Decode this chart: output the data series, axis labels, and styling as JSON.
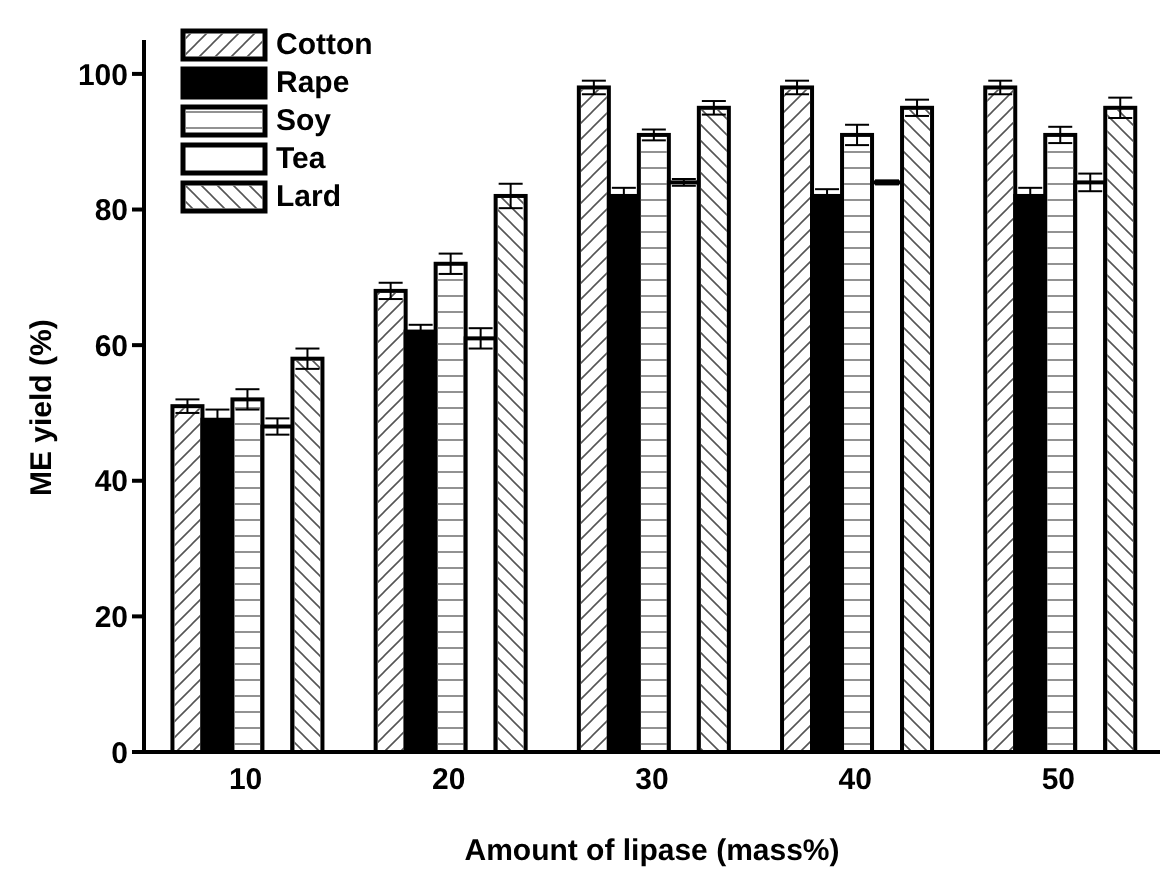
{
  "chart_data": {
    "type": "bar",
    "xlabel": "Amount of lipase (mass%)",
    "ylabel": "ME yield (%)",
    "categories": [
      "10",
      "20",
      "30",
      "40",
      "50"
    ],
    "series": [
      {
        "name": "Cotton",
        "color": "#ffffff",
        "values": [
          51,
          68,
          98,
          98,
          98
        ],
        "errors": [
          1,
          1.2,
          1,
          1,
          1
        ]
      },
      {
        "name": "Rape",
        "color": "#000000",
        "values": [
          49,
          62,
          82,
          82,
          82
        ],
        "errors": [
          1.5,
          1,
          1.2,
          1,
          1.2
        ]
      },
      {
        "name": "Soy",
        "color": "#ffffff",
        "values": [
          52,
          72,
          91,
          91,
          91
        ],
        "errors": [
          1.5,
          1.5,
          0.8,
          1.5,
          1.2
        ]
      },
      {
        "name": "Tea",
        "color": "#ffffff",
        "values": [
          48,
          61,
          84,
          84,
          84
        ],
        "errors": [
          1.2,
          1.5,
          0.5,
          0.3,
          1.3
        ]
      },
      {
        "name": "Lard",
        "color": "#ffffff",
        "values": [
          58,
          82,
          95,
          95,
          95
        ],
        "errors": [
          1.5,
          1.8,
          1,
          1.2,
          1.5
        ]
      }
    ],
    "ylim": [
      0,
      105
    ],
    "yticks": [
      0,
      20,
      40,
      60,
      80,
      100
    ],
    "grid": false,
    "legend": "top left"
  }
}
